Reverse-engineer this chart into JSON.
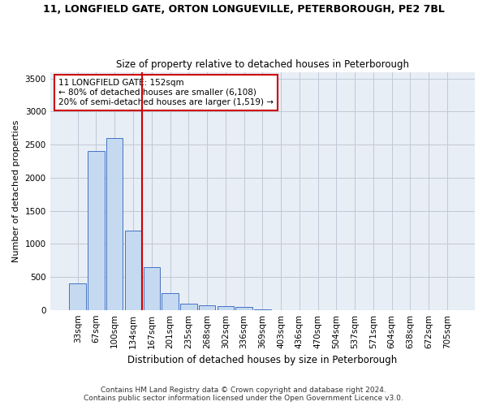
{
  "title": "11, LONGFIELD GATE, ORTON LONGUEVILLE, PETERBOROUGH, PE2 7BL",
  "subtitle": "Size of property relative to detached houses in Peterborough",
  "xlabel": "Distribution of detached houses by size in Peterborough",
  "ylabel": "Number of detached properties",
  "categories": [
    "33sqm",
    "67sqm",
    "100sqm",
    "134sqm",
    "167sqm",
    "201sqm",
    "235sqm",
    "268sqm",
    "302sqm",
    "336sqm",
    "369sqm",
    "403sqm",
    "436sqm",
    "470sqm",
    "504sqm",
    "537sqm",
    "571sqm",
    "604sqm",
    "638sqm",
    "672sqm",
    "705sqm"
  ],
  "values": [
    400,
    2400,
    2600,
    1200,
    650,
    250,
    100,
    70,
    55,
    45,
    5,
    0,
    0,
    0,
    0,
    0,
    0,
    0,
    0,
    0,
    0
  ],
  "bar_color": "#c5d9f1",
  "bar_edge_color": "#4472c4",
  "redline_index": 3.5,
  "redline_color": "#cc0000",
  "annotation_line1": "11 LONGFIELD GATE: 152sqm",
  "annotation_line2": "← 80% of detached houses are smaller (6,108)",
  "annotation_line3": "20% of semi-detached houses are larger (1,519) →",
  "annotation_box_color": "#ffffff",
  "annotation_box_edge_color": "#cc0000",
  "ylim": [
    0,
    3600
  ],
  "yticks": [
    0,
    500,
    1000,
    1500,
    2000,
    2500,
    3000,
    3500
  ],
  "footer_line1": "Contains HM Land Registry data © Crown copyright and database right 2024.",
  "footer_line2": "Contains public sector information licensed under the Open Government Licence v3.0.",
  "bg_color": "#ffffff",
  "plot_bg_color": "#e8eef5",
  "grid_color": "#c0c8d8",
  "title_fontsize": 9,
  "subtitle_fontsize": 8.5,
  "ylabel_fontsize": 8,
  "xlabel_fontsize": 8.5,
  "tick_fontsize": 7.5,
  "annot_fontsize": 7.5,
  "footer_fontsize": 6.5
}
